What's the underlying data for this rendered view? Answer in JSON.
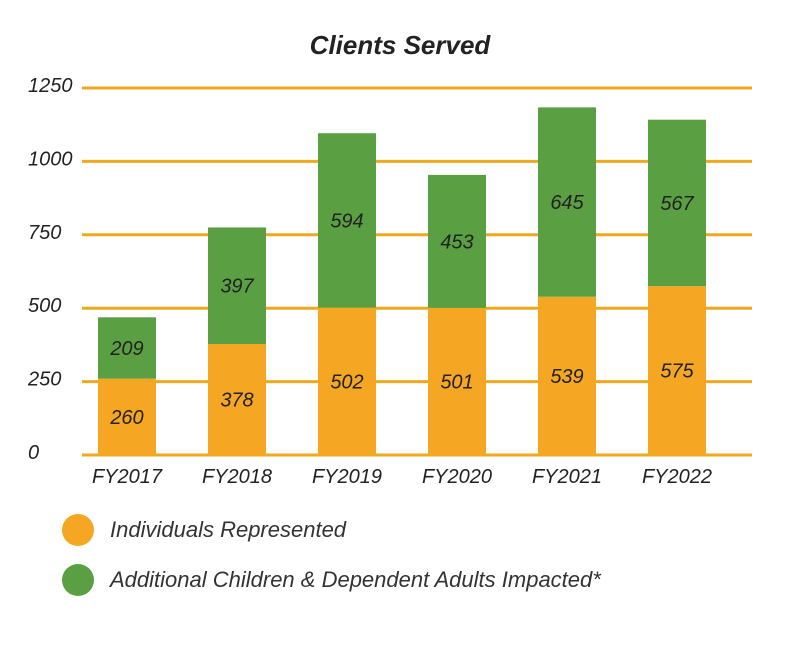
{
  "chart_data": {
    "type": "bar",
    "stacked": true,
    "title": "Clients Served",
    "xlabel": "",
    "ylabel": "",
    "categories": [
      "FY2017",
      "FY2018",
      "FY2019",
      "FY2020",
      "FY2021",
      "FY2022"
    ],
    "yticks": [
      "0",
      "250",
      "500",
      "750",
      "1000",
      "1250"
    ],
    "ylim": [
      0,
      1250
    ],
    "grid": true,
    "legend_position": "bottom-left",
    "series": [
      {
        "name": "Individuals Represented",
        "color": "#f5a623",
        "values": [
          260,
          378,
          502,
          501,
          539,
          575
        ]
      },
      {
        "name": "Additional Children & Dependent Adults Impacted*",
        "color": "#5aa043",
        "values": [
          209,
          397,
          594,
          453,
          645,
          567
        ]
      }
    ]
  },
  "colors": {
    "gridline": "#f0a91e",
    "text": "#222222"
  }
}
